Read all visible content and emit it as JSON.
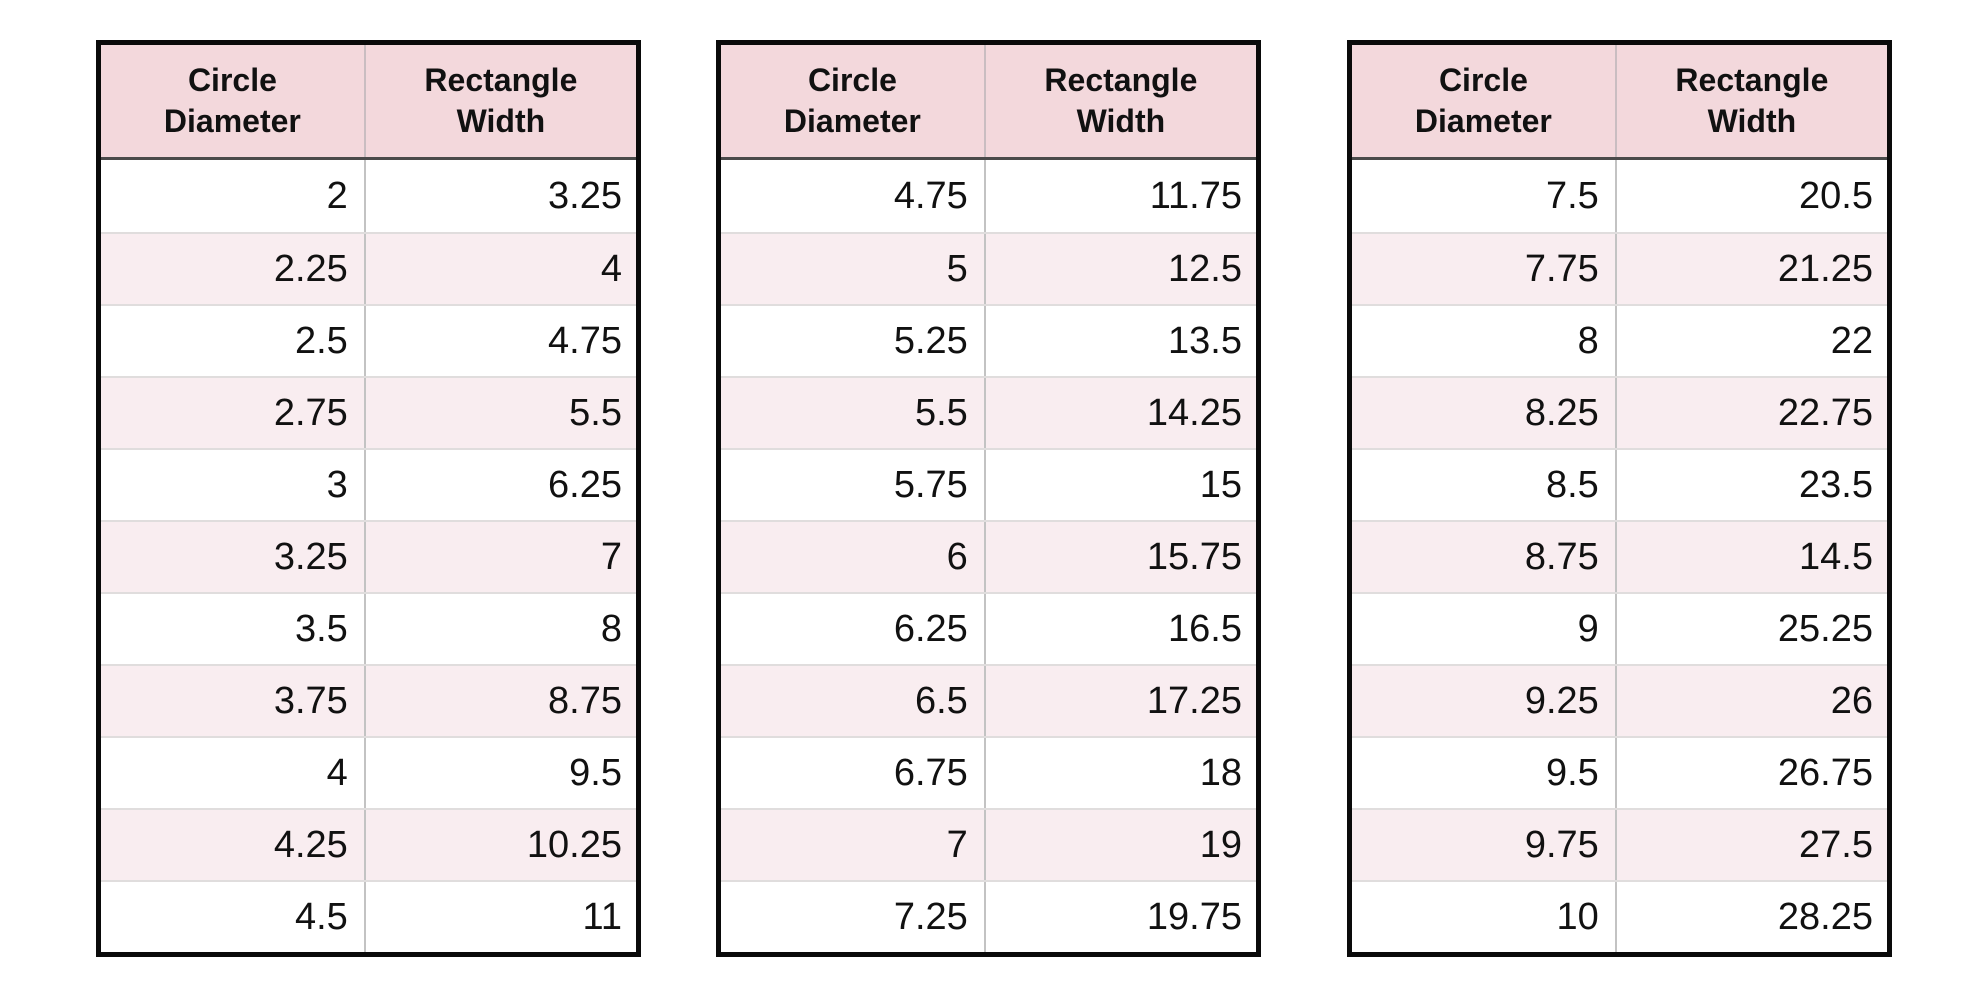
{
  "colors": {
    "page_bg": "#ffffff",
    "header_bg": "#f3d8dc",
    "stripe_bg": "#f9edf0",
    "outer_border": "#0a0a0a",
    "header_rule": "#4a4a4a",
    "column_divider": "#c3c3c3",
    "row_divider": "#e0dddd",
    "text": "#111111"
  },
  "tables": [
    {
      "headers": [
        {
          "line1": "Circle",
          "line2": "Diameter"
        },
        {
          "line1": "Rectangle",
          "line2": "Width"
        }
      ],
      "rows": [
        [
          "2",
          "3.25"
        ],
        [
          "2.25",
          "4"
        ],
        [
          "2.5",
          "4.75"
        ],
        [
          "2.75",
          "5.5"
        ],
        [
          "3",
          "6.25"
        ],
        [
          "3.25",
          "7"
        ],
        [
          "3.5",
          "8"
        ],
        [
          "3.75",
          "8.75"
        ],
        [
          "4",
          "9.5"
        ],
        [
          "4.25",
          "10.25"
        ],
        [
          "4.5",
          "11"
        ]
      ]
    },
    {
      "headers": [
        {
          "line1": "Circle",
          "line2": "Diameter"
        },
        {
          "line1": "Rectangle",
          "line2": "Width"
        }
      ],
      "rows": [
        [
          "4.75",
          "11.75"
        ],
        [
          "5",
          "12.5"
        ],
        [
          "5.25",
          "13.5"
        ],
        [
          "5.5",
          "14.25"
        ],
        [
          "5.75",
          "15"
        ],
        [
          "6",
          "15.75"
        ],
        [
          "6.25",
          "16.5"
        ],
        [
          "6.5",
          "17.25"
        ],
        [
          "6.75",
          "18"
        ],
        [
          "7",
          "19"
        ],
        [
          "7.25",
          "19.75"
        ]
      ]
    },
    {
      "headers": [
        {
          "line1": "Circle",
          "line2": "Diameter"
        },
        {
          "line1": "Rectangle",
          "line2": "Width"
        }
      ],
      "rows": [
        [
          "7.5",
          "20.5"
        ],
        [
          "7.75",
          "21.25"
        ],
        [
          "8",
          "22"
        ],
        [
          "8.25",
          "22.75"
        ],
        [
          "8.5",
          "23.5"
        ],
        [
          "8.75",
          "14.5"
        ],
        [
          "9",
          "25.25"
        ],
        [
          "9.25",
          "26"
        ],
        [
          "9.5",
          "26.75"
        ],
        [
          "9.75",
          "27.5"
        ],
        [
          "10",
          "28.25"
        ]
      ]
    }
  ],
  "chart_data": [
    {
      "type": "table",
      "columns": [
        "Circle Diameter",
        "Rectangle Width"
      ],
      "rows": [
        [
          2,
          3.25
        ],
        [
          2.25,
          4
        ],
        [
          2.5,
          4.75
        ],
        [
          2.75,
          5.5
        ],
        [
          3,
          6.25
        ],
        [
          3.25,
          7
        ],
        [
          3.5,
          8
        ],
        [
          3.75,
          8.75
        ],
        [
          4,
          9.5
        ],
        [
          4.25,
          10.25
        ],
        [
          4.5,
          11
        ]
      ]
    },
    {
      "type": "table",
      "columns": [
        "Circle Diameter",
        "Rectangle Width"
      ],
      "rows": [
        [
          4.75,
          11.75
        ],
        [
          5,
          12.5
        ],
        [
          5.25,
          13.5
        ],
        [
          5.5,
          14.25
        ],
        [
          5.75,
          15
        ],
        [
          6,
          15.75
        ],
        [
          6.25,
          16.5
        ],
        [
          6.5,
          17.25
        ],
        [
          6.75,
          18
        ],
        [
          7,
          19
        ],
        [
          7.25,
          19.75
        ]
      ]
    },
    {
      "type": "table",
      "columns": [
        "Circle Diameter",
        "Rectangle Width"
      ],
      "rows": [
        [
          7.5,
          20.5
        ],
        [
          7.75,
          21.25
        ],
        [
          8,
          22
        ],
        [
          8.25,
          22.75
        ],
        [
          8.5,
          23.5
        ],
        [
          8.75,
          14.5
        ],
        [
          9,
          25.25
        ],
        [
          9.25,
          26
        ],
        [
          9.5,
          26.75
        ],
        [
          9.75,
          27.5
        ],
        [
          10,
          28.25
        ]
      ]
    }
  ]
}
